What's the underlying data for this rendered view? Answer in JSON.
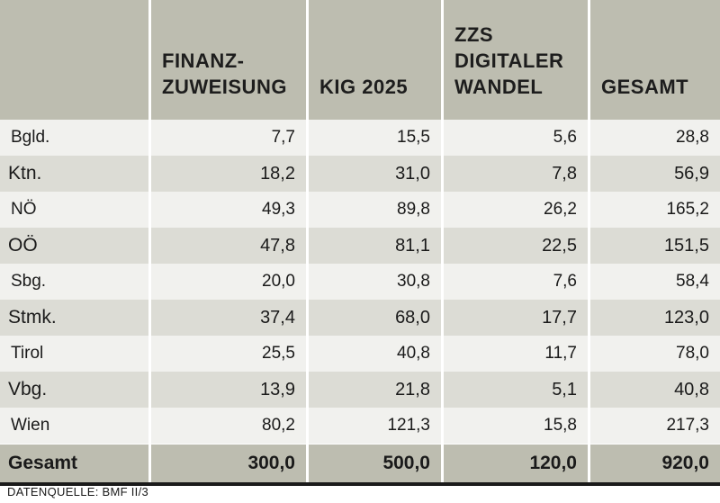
{
  "chart_data": {
    "type": "table",
    "columns": [
      "",
      "FINANZ-\nZUWEISUNG",
      "KIG 2025",
      "ZZS\nDIGITALER\nWANDEL",
      "GESAMT"
    ],
    "rows": [
      {
        "label": "Bgld.",
        "values": [
          "7,7",
          "15,5",
          "5,6",
          "28,8"
        ]
      },
      {
        "label": "Ktn.",
        "values": [
          "18,2",
          "31,0",
          "7,8",
          "56,9"
        ]
      },
      {
        "label": "NÖ",
        "values": [
          "49,3",
          "89,8",
          "26,2",
          "165,2"
        ]
      },
      {
        "label": "OÖ",
        "values": [
          "47,8",
          "81,1",
          "22,5",
          "151,5"
        ]
      },
      {
        "label": "Sbg.",
        "values": [
          "20,0",
          "30,8",
          "7,6",
          "58,4"
        ]
      },
      {
        "label": "Stmk.",
        "values": [
          "37,4",
          "68,0",
          "17,7",
          "123,0"
        ]
      },
      {
        "label": "Tirol",
        "values": [
          "25,5",
          "40,8",
          "11,7",
          "78,0"
        ]
      },
      {
        "label": "Vbg.",
        "values": [
          "13,9",
          "21,8",
          "5,1",
          "40,8"
        ]
      },
      {
        "label": "Wien",
        "values": [
          "80,2",
          "121,3",
          "15,8",
          "217,3"
        ]
      }
    ],
    "total": {
      "label": "Gesamt",
      "values": [
        "300,0",
        "500,0",
        "120,0",
        "920,0"
      ]
    }
  },
  "source": "DATENQUELLE: BMF II/3",
  "colors": {
    "header_bg": "#bdbdb0",
    "row_light": "#f1f1ee",
    "row_dark": "#dcdcd5",
    "rule": "#1a1a1a"
  }
}
